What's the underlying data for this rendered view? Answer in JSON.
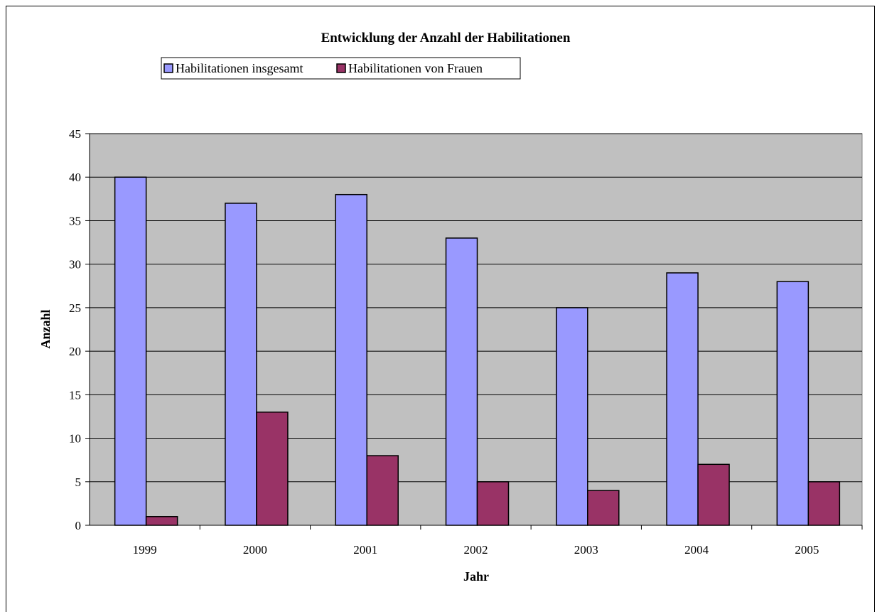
{
  "chart_data": {
    "type": "bar",
    "title": "Entwicklung der Anzahl der Habilitationen",
    "xlabel": "Jahr",
    "ylabel": "Anzahl",
    "categories": [
      "1999",
      "2000",
      "2001",
      "2002",
      "2003",
      "2004",
      "2005"
    ],
    "series": [
      {
        "name": "Habilitationen insgesamt",
        "values": [
          40,
          37,
          38,
          33,
          25,
          29,
          28
        ],
        "color": "#9999FF"
      },
      {
        "name": "Habilitationen von Frauen",
        "values": [
          1,
          13,
          8,
          5,
          4,
          7,
          5
        ],
        "color": "#993366"
      }
    ],
    "ylim": [
      0,
      45
    ],
    "yticks": [
      0,
      5,
      10,
      15,
      20,
      25,
      30,
      35,
      40,
      45
    ],
    "grid": true,
    "plot_background": "#C0C0C0",
    "legend_position": "top"
  }
}
